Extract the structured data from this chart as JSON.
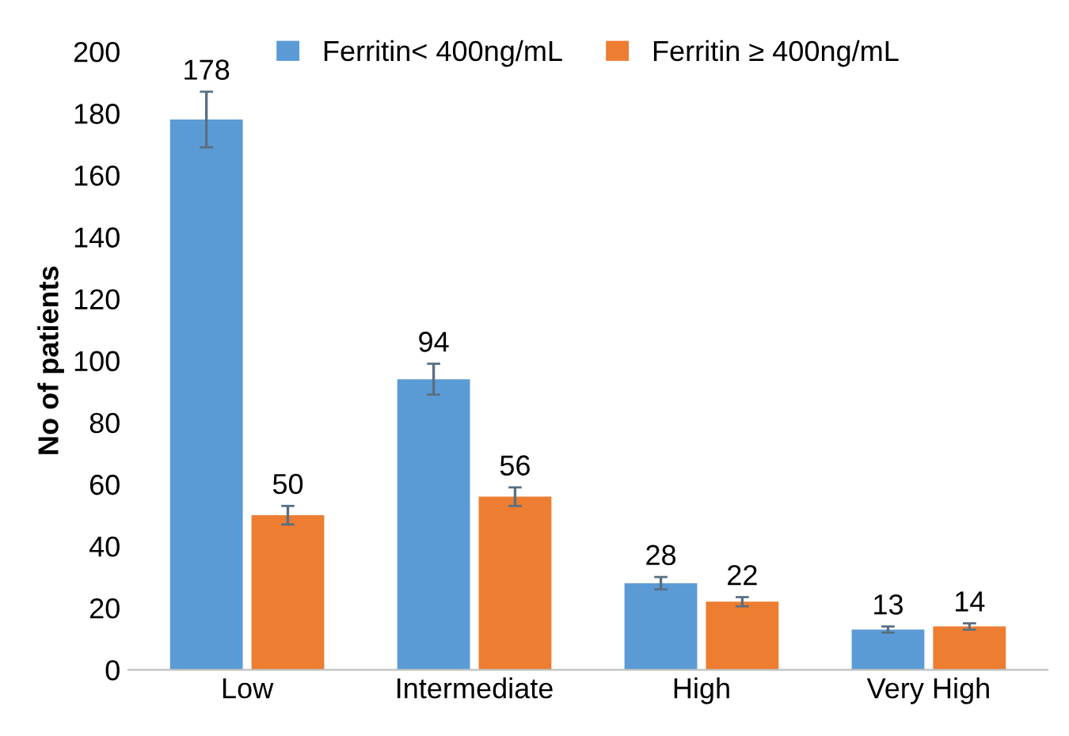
{
  "chart_data": {
    "type": "bar",
    "ylabel": "No of patients",
    "categories": [
      "Low",
      "Intermediate",
      "High",
      "Very High"
    ],
    "series": [
      {
        "name": "Ferritin< 400ng/mL",
        "color": "#5b9bd5",
        "values": [
          178,
          94,
          28,
          13
        ],
        "errors": [
          9,
          5,
          2,
          1
        ]
      },
      {
        "name": "Ferritin ≥ 400ng/mL",
        "color": "#ed7d31",
        "values": [
          50,
          56,
          22,
          14
        ],
        "errors": [
          3,
          3,
          1.5,
          1
        ]
      }
    ],
    "ylim": [
      0,
      200
    ],
    "yticks": [
      0,
      20,
      40,
      60,
      80,
      100,
      120,
      140,
      160,
      180,
      200
    ],
    "data_labels": true,
    "grid": false,
    "legend": "top"
  }
}
